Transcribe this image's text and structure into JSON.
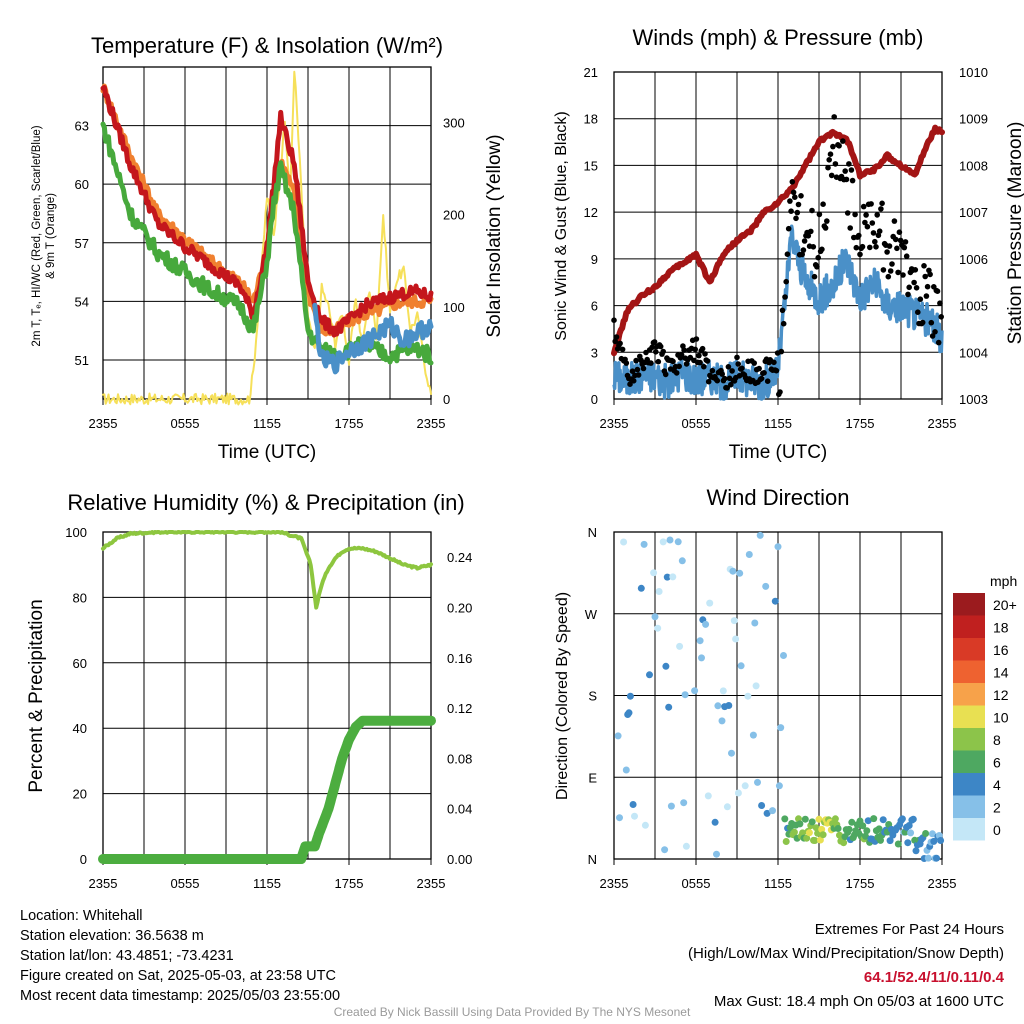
{
  "colors": {
    "temp": "#c4161c",
    "dewpoint": "#47a93c",
    "heatindex": "#4a90c8",
    "temp9m": "#f08030",
    "solar": "#f6e05a",
    "wind": "#4a90c8",
    "gust": "#000000",
    "pressure": "#a31515",
    "rh": "#8dc63f",
    "precip": "#4cad3f"
  },
  "x_ticks": [
    "2355",
    "0555",
    "1155",
    "1755",
    "2355"
  ],
  "panels": {
    "temp": {
      "title": "Temperature (F) & Insolation (W/m²)",
      "xlabel": "Time (UTC)",
      "ylabel_line1": "2m T, Tₑ, HI/WC (Red, Green, Scarlet/Blue)",
      "ylabel_line2": "& 9m T (Orange)",
      "ylabel_right": "Solar Insolation (Yellow)",
      "yticks_left": [
        "51",
        "54",
        "57",
        "60",
        "63"
      ],
      "yticks_right": [
        "0",
        "100",
        "200",
        "300"
      ]
    },
    "wind": {
      "title": "Winds (mph) & Pressure (mb)",
      "xlabel": "Time (UTC)",
      "ylabel_left": "Sonic Wind & Gust (Blue, Black)",
      "ylabel_right": "Station Pressure (Maroon)",
      "yticks_left": [
        "0",
        "3",
        "6",
        "9",
        "12",
        "15",
        "18",
        "21"
      ],
      "yticks_right": [
        "1003",
        "1004",
        "1005",
        "1006",
        "1007",
        "1008",
        "1009",
        "1010"
      ]
    },
    "rh": {
      "title": "Relative Humidity (%) & Precipitation (in)",
      "ylabel_left": "Percent & Precipitation",
      "yticks_left": [
        "0",
        "20",
        "40",
        "60",
        "80",
        "100"
      ],
      "yticks_right": [
        "0.00",
        "0.04",
        "0.08",
        "0.12",
        "0.16",
        "0.20",
        "0.24"
      ]
    },
    "dir": {
      "title": "Wind Direction",
      "ylabel_left": "Direction (Colored By Speed)",
      "yticks_left": [
        "N",
        "E",
        "S",
        "W",
        "N"
      ],
      "legend_title": "mph",
      "legend_labels": [
        "20+",
        "18",
        "16",
        "14",
        "12",
        "10",
        "8",
        "6",
        "4",
        "2",
        "0"
      ],
      "legend_colors": [
        "#9b1b1e",
        "#c0201f",
        "#d93a26",
        "#ee6230",
        "#f7a24a",
        "#e8e052",
        "#8cc44a",
        "#4ea861",
        "#3d86c6",
        "#86c0e8",
        "#c4e7f7"
      ]
    }
  },
  "chart_data": [
    {
      "type": "line",
      "x_range": [
        "2355",
        "2355"
      ],
      "ylim": [
        49,
        66
      ],
      "ylim_right": [
        0,
        360
      ],
      "series": [
        {
          "name": "2m T (Red)",
          "x": [
            0,
            2,
            4,
            6,
            8,
            10,
            11,
            12,
            12.5,
            13,
            14,
            15,
            16,
            17,
            18,
            19,
            20,
            21,
            22,
            23,
            24
          ],
          "values": [
            65,
            61,
            58,
            56.8,
            55.8,
            54.8,
            53.3,
            56.8,
            60,
            63.4,
            61,
            55,
            53,
            52.5,
            53,
            53.7,
            54,
            54.2,
            54.4,
            54.5,
            54.2
          ]
        },
        {
          "name": "Tₑ (Green)",
          "x": [
            0,
            2,
            4,
            6,
            8,
            10,
            11,
            12,
            12.5,
            13,
            14,
            15,
            16,
            17,
            18,
            19,
            20,
            21,
            22,
            23,
            24
          ],
          "values": [
            63,
            58.5,
            56.5,
            55.5,
            54.5,
            53.8,
            52.5,
            56,
            59,
            60.8,
            58.5,
            52.5,
            51.5,
            51.3,
            51.5,
            51.8,
            51.5,
            51.2,
            51.5,
            51.6,
            51.2
          ]
        },
        {
          "name": "HI/WC (Blue)",
          "x": [
            15.5,
            16,
            17,
            18,
            19,
            20,
            21,
            22,
            23,
            24
          ],
          "values": [
            53.5,
            51,
            50.8,
            51.5,
            51.8,
            52.3,
            52.8,
            52.0,
            52.4,
            52.8
          ]
        },
        {
          "name": "9m T (Orange)",
          "x": [
            0,
            2,
            4,
            6,
            8,
            10,
            11,
            12,
            12.5,
            13,
            14,
            15,
            16,
            17,
            18,
            19,
            20,
            21,
            22,
            23,
            24
          ],
          "values": [
            65,
            61.5,
            58.5,
            57.2,
            56,
            55,
            54,
            56.5,
            59.5,
            61.2,
            59.5,
            54.5,
            52.5,
            52.5,
            53,
            53.3,
            53.5,
            53.8,
            54,
            54,
            54
          ]
        },
        {
          "name": "Solar Insolation (Yellow)",
          "axis": "right",
          "x": [
            0,
            6,
            9,
            10,
            10.7,
            11,
            11.5,
            12,
            12.5,
            13,
            13.3,
            13.7,
            14,
            14.5,
            15,
            15.5,
            16,
            16.5,
            17,
            17.5,
            18,
            18.5,
            19,
            19.5,
            20,
            20.5,
            21,
            21.5,
            22,
            22.5,
            23,
            23.5,
            24
          ],
          "values": [
            0,
            0,
            0,
            0,
            0,
            30,
            120,
            220,
            180,
            250,
            300,
            220,
            360,
            230,
            90,
            50,
            120,
            100,
            60,
            95,
            40,
            110,
            55,
            120,
            70,
            200,
            95,
            130,
            140,
            75,
            90,
            40,
            5
          ]
        }
      ]
    },
    {
      "type": "line",
      "x_range": [
        "2355",
        "2355"
      ],
      "ylim": [
        0,
        21
      ],
      "ylim_right": [
        1003,
        1010
      ],
      "series": [
        {
          "name": "Sonic Wind (Blue)",
          "x": [
            0,
            1,
            2,
            3,
            4,
            5,
            6,
            7,
            8,
            9,
            10,
            11,
            12,
            12.5,
            13,
            14,
            15,
            16,
            17,
            18,
            19,
            20,
            21,
            22,
            23,
            24
          ],
          "values": [
            1.5,
            1.2,
            1.5,
            1.5,
            1.0,
            1.8,
            1.2,
            1.5,
            1.0,
            1.5,
            1.2,
            1.0,
            2.0,
            6.0,
            10.5,
            7.5,
            6.5,
            7.2,
            9.0,
            6.5,
            7.5,
            6.0,
            6.0,
            5.5,
            5.0,
            4.0
          ]
        },
        {
          "name": "Gust (Black)",
          "x": [
            0,
            1,
            2,
            3,
            4,
            5,
            6,
            7,
            8,
            9,
            10,
            11,
            12,
            12.5,
            13,
            14,
            15,
            16,
            17,
            18,
            19,
            20,
            21,
            22,
            23,
            24
          ],
          "values": [
            5.5,
            2.0,
            3.0,
            4.0,
            2.5,
            3.5,
            4.0,
            2.5,
            2.0,
            2.7,
            2.5,
            2.5,
            3.0,
            9.0,
            14.5,
            13.0,
            12.0,
            18.4,
            16.5,
            12.5,
            14.0,
            12.0,
            11.5,
            9.5,
            8.5,
            7.0
          ]
        },
        {
          "name": "Station Pressure (Maroon)",
          "axis": "right",
          "x": [
            0,
            1,
            2,
            3,
            4,
            5,
            6,
            7,
            8,
            9,
            10,
            11,
            12,
            13,
            14,
            15,
            16,
            17,
            18,
            19,
            20,
            21,
            22,
            23,
            23.5,
            24
          ],
          "values": [
            1004.0,
            1004.9,
            1005.2,
            1005.4,
            1005.7,
            1005.9,
            1006.1,
            1005.5,
            1006.1,
            1006.4,
            1006.6,
            1007.0,
            1007.2,
            1007.5,
            1008.0,
            1008.5,
            1008.7,
            1008.6,
            1007.8,
            1007.9,
            1008.2,
            1008.0,
            1007.8,
            1008.5,
            1008.8,
            1008.7
          ]
        }
      ]
    },
    {
      "type": "line",
      "x_range": [
        "2355",
        "2355"
      ],
      "ylim": [
        0,
        100
      ],
      "ylim_right": [
        0,
        0.26
      ],
      "series": [
        {
          "name": "Relative Humidity",
          "x": [
            0,
            1,
            2,
            4,
            6,
            8,
            10,
            11,
            12,
            13,
            14.5,
            15.2,
            15.6,
            16,
            16.5,
            17,
            17.5,
            18,
            19,
            20,
            21,
            22,
            23,
            24
          ],
          "values": [
            95,
            98,
            99.5,
            100,
            100,
            100,
            100,
            100,
            100,
            100,
            98,
            90,
            77,
            84,
            89,
            92,
            94,
            95,
            95,
            94,
            92,
            90,
            89,
            90
          ]
        },
        {
          "name": "Precipitation",
          "axis": "right",
          "x": [
            0,
            6,
            12,
            14.5,
            14.8,
            15.5,
            15.8,
            16.5,
            17,
            17.5,
            18,
            18.5,
            19,
            20,
            22,
            24
          ],
          "values": [
            0,
            0,
            0,
            0,
            0.01,
            0.01,
            0.02,
            0.04,
            0.06,
            0.08,
            0.095,
            0.105,
            0.11,
            0.11,
            0.11,
            0.11
          ]
        }
      ]
    },
    {
      "type": "scatter",
      "x_range": [
        "2355",
        "2355"
      ],
      "ylim": [
        0,
        360
      ],
      "y_ticks": [
        "N",
        "E",
        "S",
        "W",
        "N"
      ],
      "series": [
        {
          "name": "Direction colored by speed",
          "x": [
            0.5,
            1.5,
            2.5,
            3.5,
            4.5,
            5.5,
            6.5,
            7.5,
            8.5,
            9.5,
            10.5,
            11.5,
            12.5,
            13.5,
            14.5,
            15.5,
            16.5,
            17.5,
            18.5,
            19.5,
            20.5,
            21.5,
            22.5,
            23.5
          ],
          "values": [
            340,
            320,
            350,
            20,
            330,
            150,
            200,
            100,
            300,
            260,
            60,
            350,
            20,
            15,
            20,
            30,
            25,
            30,
            35,
            30,
            35,
            40,
            30,
            20
          ],
          "speed": [
            1,
            1,
            2,
            1,
            1,
            2,
            1,
            1,
            2,
            1,
            1,
            2,
            6,
            7,
            8,
            10,
            7,
            6,
            6,
            5,
            5,
            4,
            4,
            3
          ]
        }
      ]
    }
  ],
  "info": {
    "location": "Location: Whitehall",
    "elevation": "Station elevation: 36.5638 m",
    "latlon": "Station lat/lon: 43.4851; -73.4231",
    "created": "Figure created on Sat, 2025-05-03, at 23:58 UTC",
    "recent": "Most recent data timestamp: 2025/05/03 23:55:00"
  },
  "extremes": {
    "title": "Extremes For Past 24 Hours",
    "subtitle": "(High/Low/Max Wind/Precipitation/Snow Depth)",
    "values": "64.1/52.4/11/0.11/0.4",
    "gust": "Max Gust: 18.4 mph On 05/03 at 1600 UTC"
  },
  "credit": "Created By Nick Bassill Using Data Provided By The NYS Mesonet"
}
